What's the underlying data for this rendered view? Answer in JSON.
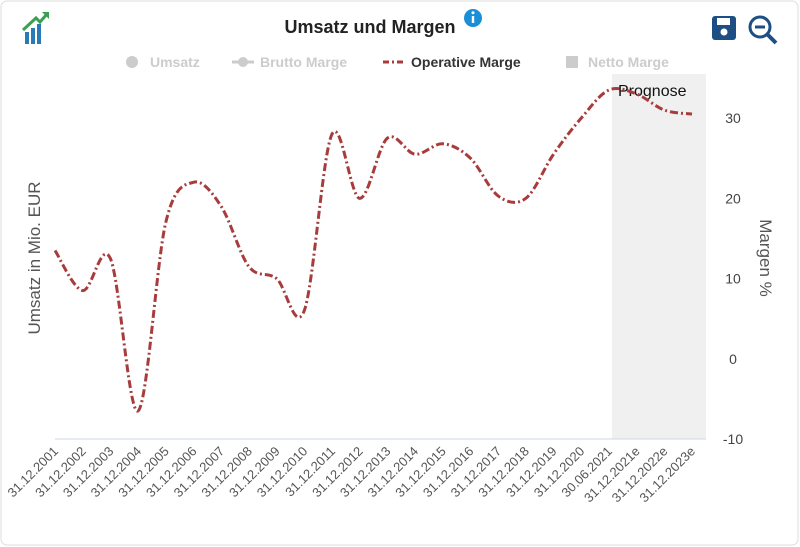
{
  "chart_data": {
    "type": "line",
    "title": "Umsatz und Margen",
    "y_label": "Umsatz in Mio. EUR",
    "y2_label": "Margen %",
    "annotation": "Prognose",
    "categories": [
      "31.12.2001",
      "31.12.2002",
      "31.12.2003",
      "31.12.2004",
      "31.12.2005",
      "31.12.2006",
      "31.12.2007",
      "31.12.2008",
      "31.12.2009",
      "31.12.2010",
      "31.12.2011",
      "31.12.2012",
      "31.12.2013",
      "31.12.2014",
      "31.12.2015",
      "31.12.2016",
      "31.12.2017",
      "31.12.2018",
      "31.12.2019",
      "31.12.2020",
      "30.06.2021",
      "31.12.2021e",
      "31.12.2022e",
      "31.12.2023e"
    ],
    "series": [
      {
        "name": "Operative Marge",
        "color": "#a83c3c",
        "axis": "y2",
        "values": [
          13.5,
          8.5,
          12.5,
          -6.5,
          17,
          22,
          19,
          11.5,
          10,
          6,
          28,
          20,
          27.5,
          25.5,
          26.8,
          25,
          20.3,
          20,
          25.5,
          30,
          33.5,
          33,
          31,
          30.5
        ]
      }
    ],
    "inactive_series": [
      "Umsatz",
      "Brutto Marge",
      "Netto Marge"
    ],
    "y2lim": [
      -10,
      35
    ],
    "y2ticks": [
      -10,
      0,
      10,
      20,
      30
    ]
  }
}
